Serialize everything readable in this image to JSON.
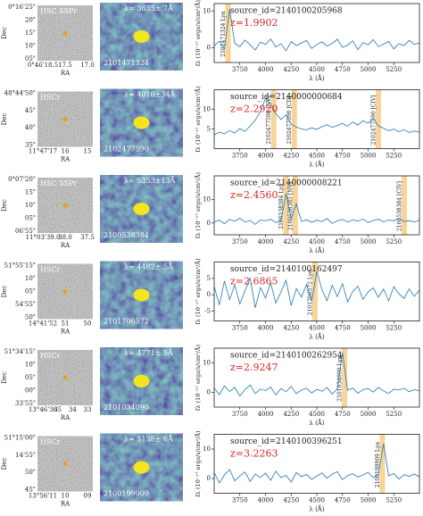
{
  "chart_data": [
    {
      "type": "line",
      "source": "source_id=2140100205968",
      "z": "z=1.9902",
      "xlabel": "λ (Å)",
      "ylabel": "fλ (10⁻¹⁷ ergs/s/cm²/Å)",
      "color": "#1f77b4",
      "xlim": [
        3500,
        5500
      ],
      "xticks": [
        3750,
        4000,
        4250,
        4500,
        4750,
        5000,
        5250
      ],
      "ylim": [
        -4,
        12
      ],
      "yticks": [
        0,
        10
      ],
      "annotations": [
        {
          "text": "2101471324 Lyα",
          "x": 3635
        }
      ],
      "x": [
        3500,
        3550,
        3600,
        3650,
        3700,
        3750,
        3800,
        3850,
        3900,
        3950,
        4000,
        4050,
        4100,
        4150,
        4200,
        4250,
        4300,
        4350,
        4400,
        4450,
        4500,
        4550,
        4600,
        4650,
        4700,
        4750,
        4800,
        4850,
        4900,
        4950,
        5000,
        5050,
        5100,
        5150,
        5200,
        5250,
        5300,
        5350,
        5400,
        5450,
        5500
      ],
      "values": [
        0.5,
        1.8,
        -0.4,
        10.5,
        1.2,
        0.3,
        2.1,
        0.8,
        -0.6,
        1.5,
        0.9,
        2.4,
        0.2,
        1.1,
        -0.8,
        1.7,
        0.6,
        1.3,
        2.0,
        -0.2,
        0.9,
        1.6,
        0.4,
        1.2,
        2.3,
        0.1,
        0.7,
        1.9,
        -0.5,
        1.4,
        0.8,
        2.2,
        0.3,
        1.0,
        1.7,
        -0.3,
        1.1,
        0.6,
        2.0,
        0.9,
        1.3
      ]
    },
    {
      "type": "line",
      "source": "source_id=2140000000684",
      "z": "z=2.2920",
      "xlabel": "λ (Å)",
      "ylabel": "fλ (10⁻¹⁷ ergs/s/cm²/Å)",
      "color": "#1f77b4",
      "xlim": [
        3500,
        5500
      ],
      "xticks": [
        3750,
        4000,
        4250,
        4500,
        4750,
        5000,
        5250
      ],
      "ylim": [
        0,
        15
      ],
      "yticks": [
        5,
        10
      ],
      "annotations": [
        {
          "text": "2102477590 [NV]",
          "x": 4080
        },
        {
          "text": "2102477590 [CII]",
          "x": 4280
        },
        {
          "text": "2102477590 [CIV]",
          "x": 5100
        }
      ],
      "x": [
        3500,
        3550,
        3600,
        3650,
        3700,
        3750,
        3800,
        3850,
        3900,
        3950,
        4000,
        4050,
        4100,
        4150,
        4200,
        4250,
        4300,
        4350,
        4400,
        4450,
        4500,
        4550,
        4600,
        4650,
        4700,
        4750,
        4800,
        4850,
        4900,
        4950,
        5000,
        5050,
        5100,
        5150,
        5200,
        5250,
        5300,
        5350,
        5400,
        5450,
        5500
      ],
      "values": [
        3.5,
        4.2,
        3.8,
        4.6,
        4.0,
        5.1,
        4.4,
        5.8,
        7.2,
        9.5,
        12.8,
        11.5,
        9.0,
        7.4,
        8.6,
        6.2,
        5.5,
        5.0,
        4.8,
        5.3,
        4.9,
        5.6,
        6.1,
        5.4,
        5.9,
        6.4,
        5.7,
        6.8,
        6.0,
        7.1,
        6.5,
        7.6,
        5.8,
        5.2,
        4.6,
        5.0,
        4.3,
        4.8,
        4.1,
        4.5,
        4.2
      ]
    },
    {
      "type": "line",
      "source": "source_id=2140000008221",
      "z": "z=2.4560",
      "xlabel": "λ (Å)",
      "ylabel": "fλ (10⁻¹⁷ ergs/s/cm²/Å)",
      "color": "#1f77b4",
      "xlim": [
        3500,
        5500
      ],
      "xticks": [
        3750,
        4000,
        4250,
        4500,
        4750,
        5000,
        5250
      ],
      "ylim": [
        -5,
        20
      ],
      "yticks": [
        0,
        10
      ],
      "annotations": [
        {
          "text": "2100538384 Lyα",
          "x": 4200
        },
        {
          "text": "2100538385 [NV]",
          "x": 4290
        },
        {
          "text": "2100538384 [CIV]",
          "x": 5353
        }
      ],
      "x": [
        3500,
        3550,
        3600,
        3650,
        3700,
        3750,
        3800,
        3850,
        3900,
        3950,
        4000,
        4050,
        4100,
        4150,
        4200,
        4250,
        4300,
        4350,
        4400,
        4450,
        4500,
        4550,
        4600,
        4650,
        4700,
        4750,
        4800,
        4850,
        4900,
        4950,
        5000,
        5050,
        5100,
        5150,
        5200,
        5250,
        5300,
        5350,
        5400,
        5450,
        5500
      ],
      "values": [
        0.5,
        1.2,
        -0.3,
        1.5,
        0.8,
        2.0,
        0.4,
        1.1,
        -0.6,
        1.3,
        0.9,
        1.6,
        0.2,
        1.0,
        12.5,
        1.8,
        8.2,
        0.7,
        1.4,
        0.3,
        1.2,
        0.6,
        1.9,
        -0.2,
        1.0,
        1.5,
        0.4,
        1.3,
        0.8,
        1.7,
        0.2,
        1.1,
        1.6,
        0.5,
        1.3,
        0.9,
        2.0,
        0.6,
        1.0,
        0.4,
        1.2
      ]
    },
    {
      "type": "line",
      "source": "source_id=2140100162497",
      "z": "z=2.6865",
      "xlabel": "λ (Å)",
      "ylabel": "fλ (10⁻¹⁷ ergs/s/cm²/Å)",
      "color": "#1f77b4",
      "xlim": [
        3500,
        5500
      ],
      "xticks": [
        3750,
        4000,
        4250,
        4500,
        4750,
        5000,
        5250
      ],
      "ylim": [
        -8,
        10
      ],
      "yticks": [
        -5,
        0,
        5
      ],
      "annotations": [
        {
          "text": "2101706572 Lyα",
          "x": 4482
        }
      ],
      "x": [
        3500,
        3550,
        3600,
        3650,
        3700,
        3750,
        3800,
        3850,
        3900,
        3950,
        4000,
        4050,
        4100,
        4150,
        4200,
        4250,
        4300,
        4350,
        4400,
        4450,
        4500,
        4550,
        4600,
        4650,
        4700,
        4750,
        4800,
        4850,
        4900,
        4950,
        5000,
        5050,
        5100,
        5150,
        5200,
        5250,
        5300,
        5350,
        5400,
        5450,
        5500
      ],
      "values": [
        2.5,
        -3.1,
        4.2,
        -1.5,
        3.0,
        -2.8,
        1.2,
        5.1,
        -4.0,
        2.2,
        -1.0,
        3.6,
        -2.5,
        0.8,
        4.4,
        -3.3,
        1.9,
        -0.7,
        3.1,
        -2.0,
        7.2,
        1.5,
        -1.8,
        2.9,
        -0.6,
        3.4,
        -2.2,
        1.0,
        2.6,
        -1.4,
        0.9,
        2.1,
        -0.8,
        1.7,
        -1.9,
        2.5,
        0.3,
        -1.1,
        1.8,
        -0.5,
        1.4
      ]
    },
    {
      "type": "line",
      "source": "source_id=2140100262954",
      "z": "z=2.9247",
      "xlabel": "λ (Å)",
      "ylabel": "fλ (10⁻¹⁷ ergs/s/cm²/Å)",
      "color": "#1f77b4",
      "xlim": [
        3500,
        5500
      ],
      "xticks": [
        3750,
        4000,
        4250,
        4500,
        4750,
        5000,
        5250
      ],
      "ylim": [
        -5,
        15
      ],
      "yticks": [
        0,
        10
      ],
      "annotations": [
        {
          "text": "2101034090 Lyα",
          "x": 4771
        }
      ],
      "x": [
        3500,
        3550,
        3600,
        3650,
        3700,
        3750,
        3800,
        3850,
        3900,
        3950,
        4000,
        4050,
        4100,
        4150,
        4200,
        4250,
        4300,
        4350,
        4400,
        4450,
        4500,
        4550,
        4600,
        4650,
        4700,
        4750,
        4800,
        4850,
        4900,
        4950,
        5000,
        5050,
        5100,
        5150,
        5200,
        5250,
        5300,
        5350,
        5400,
        5450,
        5500
      ],
      "values": [
        1.5,
        -0.8,
        2.2,
        0.3,
        1.7,
        -1.2,
        0.9,
        2.5,
        -0.4,
        1.1,
        0.6,
        1.8,
        -0.9,
        1.3,
        0.2,
        2.0,
        -0.5,
        0.8,
        1.4,
        -0.2,
        1.0,
        0.4,
        1.6,
        -0.6,
        1.2,
        13.5,
        0.7,
        1.5,
        -0.3,
        0.9,
        1.3,
        0.1,
        1.7,
        0.5,
        -0.4,
        1.1,
        0.8,
        1.4,
        0.2,
        0.9,
        0.6
      ]
    },
    {
      "type": "line",
      "source": "source_id=2140100396251",
      "z": "z=3.2263",
      "xlabel": "λ (Å)",
      "ylabel": "fλ (10⁻¹⁷ ergs/s/cm²/Å)",
      "color": "#1f77b4",
      "xlim": [
        3500,
        5500
      ],
      "xticks": [
        3750,
        4000,
        4250,
        4500,
        4750,
        5000,
        5250
      ],
      "ylim": [
        -5,
        15
      ],
      "yticks": [
        0,
        10
      ],
      "annotations": [
        {
          "text": "2100199909 Lyα",
          "x": 5138
        }
      ],
      "x": [
        3500,
        3550,
        3600,
        3650,
        3700,
        3750,
        3800,
        3850,
        3900,
        3950,
        4000,
        4050,
        4100,
        4150,
        4200,
        4250,
        4300,
        4350,
        4400,
        4450,
        4500,
        4550,
        4600,
        4650,
        4700,
        4750,
        4800,
        4850,
        4900,
        4950,
        5000,
        5050,
        5100,
        5150,
        5200,
        5250,
        5300,
        5350,
        5400,
        5450,
        5500
      ],
      "values": [
        2.0,
        -1.5,
        1.2,
        3.0,
        -0.8,
        0.9,
        2.2,
        -1.0,
        1.5,
        0.4,
        1.8,
        -0.6,
        2.5,
        0.3,
        1.1,
        -1.2,
        2.0,
        0.6,
        1.4,
        -0.3,
        0.8,
        1.9,
        0.1,
        1.5,
        2.3,
        -0.4,
        1.0,
        1.6,
        0.5,
        1.2,
        2.1,
        0.3,
        1.4,
        11.8,
        0.9,
        1.7,
        -0.2,
        1.3,
        0.7,
        1.5,
        0.6
      ]
    }
  ],
  "cutouts": [
    {
      "survey": "HSC SSPr",
      "dec_label": "Dec",
      "ra_label": "RA",
      "dec_ticks": [
        "0°16'25\"",
        "20\"",
        "15\"",
        "10\"",
        "05\""
      ],
      "ra_ticks": [
        "0°46'18.5",
        "17.5",
        "17.0"
      ],
      "nb_label": "λ= 3635± 7Å",
      "nb_id": "2101471324"
    },
    {
      "survey": "HSCr",
      "dec_label": "Dec",
      "ra_label": "RA",
      "dec_ticks": [
        "48°44'50\"",
        "45\"",
        "40\"",
        "35\""
      ],
      "ra_ticks": [
        "11°47'17",
        "16",
        "15"
      ],
      "nb_label": "λ= 4010±34Å",
      "nb_id": "2102477590"
    },
    {
      "survey": "HSC SSPr",
      "dec_label": "Dec",
      "ra_label": "RA",
      "dec_ticks": [
        "0°07'20\"",
        "15\"",
        "10\"",
        "05\"",
        "06'55\""
      ],
      "ra_ticks": [
        "11°03'39.0",
        "38.0",
        "37.5"
      ],
      "nb_label": "λ= 5353±13Å",
      "nb_id": "2100538384"
    },
    {
      "survey": "HSCr",
      "dec_label": "Dec",
      "ra_label": "RA",
      "dec_ticks": [
        "51°55'15\"",
        "10\"",
        "05\"",
        "54'55\"",
        "50\""
      ],
      "ra_ticks": [
        "14°41'52",
        "51",
        "50"
      ],
      "nb_label": "λ= 4482± 5Å",
      "nb_id": "2101706572"
    },
    {
      "survey": "HSCr",
      "dec_label": "Dec",
      "ra_label": "RA",
      "dec_ticks": [
        "51°34'15\"",
        "10\"",
        "05\"",
        "00\"",
        "33'55\""
      ],
      "ra_ticks": [
        "13°46'36",
        "35",
        "34",
        "33"
      ],
      "nb_label": "λ= 4771± 5Å",
      "nb_id": "2101034090"
    },
    {
      "survey": "HSCr",
      "dec_label": "Dec",
      "ra_label": "RA",
      "dec_ticks": [
        "51°15'00\"",
        "14'55\"",
        "50\"",
        "45\""
      ],
      "ra_ticks": [
        "13°56'11",
        "10",
        "09"
      ],
      "nb_label": "λ= 5138± 6Å",
      "nb_id": "2100199909"
    }
  ]
}
